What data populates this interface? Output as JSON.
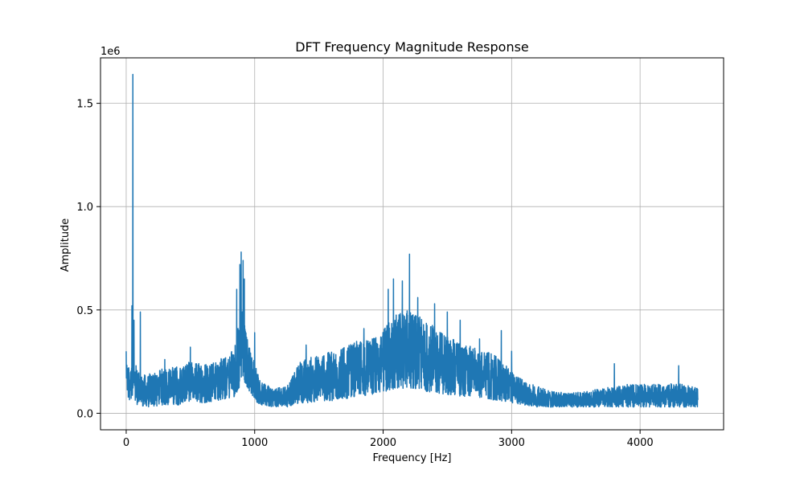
{
  "chart_data": {
    "type": "line",
    "title": "DFT Frequency Magnitude Response",
    "xlabel": "Frequency [Hz]",
    "ylabel": "Amplitude",
    "y_offset_label": "1e6",
    "xlim": [
      -200,
      4650
    ],
    "ylim": [
      -0.08,
      1.72
    ],
    "x_ticks": [
      {
        "value": 0,
        "label": "0"
      },
      {
        "value": 1000,
        "label": "1000"
      },
      {
        "value": 2000,
        "label": "2000"
      },
      {
        "value": 3000,
        "label": "3000"
      },
      {
        "value": 4000,
        "label": "4000"
      }
    ],
    "y_ticks": [
      {
        "value": 0.0,
        "label": "0.0"
      },
      {
        "value": 0.5,
        "label": "0.5"
      },
      {
        "value": 1.0,
        "label": "1.0"
      },
      {
        "value": 1.5,
        "label": "1.5"
      }
    ],
    "grid": true,
    "line_color": "#1f77b4",
    "series": [
      {
        "name": "magnitude",
        "envelope": {
          "x": [
            0,
            30,
            55,
            80,
            110,
            200,
            300,
            400,
            500,
            600,
            700,
            780,
            840,
            880,
            900,
            930,
            1000,
            1050,
            1150,
            1250,
            1350,
            1420,
            1500,
            1600,
            1700,
            1800,
            1900,
            1980,
            2050,
            2100,
            2150,
            2200,
            2250,
            2300,
            2400,
            2500,
            2600,
            2700,
            2800,
            2900,
            3000,
            3100,
            3200,
            3300,
            3400,
            3500,
            3600,
            3700,
            3800,
            3900,
            4000,
            4100,
            4200,
            4300,
            4400,
            4450
          ],
          "low": [
            0.1,
            0.05,
            0.1,
            0.04,
            0.03,
            0.03,
            0.04,
            0.04,
            0.05,
            0.05,
            0.06,
            0.07,
            0.08,
            0.12,
            0.16,
            0.14,
            0.06,
            0.04,
            0.03,
            0.03,
            0.05,
            0.05,
            0.06,
            0.06,
            0.07,
            0.08,
            0.09,
            0.1,
            0.11,
            0.12,
            0.12,
            0.12,
            0.12,
            0.11,
            0.1,
            0.09,
            0.08,
            0.08,
            0.07,
            0.06,
            0.05,
            0.04,
            0.03,
            0.03,
            0.03,
            0.03,
            0.03,
            0.03,
            0.03,
            0.03,
            0.03,
            0.03,
            0.03,
            0.03,
            0.03,
            0.03
          ],
          "high": [
            0.25,
            0.22,
            0.3,
            0.22,
            0.18,
            0.2,
            0.22,
            0.23,
            0.25,
            0.25,
            0.25,
            0.28,
            0.32,
            0.45,
            0.55,
            0.4,
            0.25,
            0.15,
            0.12,
            0.13,
            0.25,
            0.27,
            0.28,
            0.3,
            0.32,
            0.35,
            0.36,
            0.38,
            0.45,
            0.48,
            0.5,
            0.5,
            0.48,
            0.46,
            0.42,
            0.38,
            0.34,
            0.32,
            0.3,
            0.27,
            0.2,
            0.16,
            0.13,
            0.11,
            0.1,
            0.1,
            0.11,
            0.12,
            0.13,
            0.14,
            0.14,
            0.14,
            0.14,
            0.15,
            0.13,
            0.12
          ]
        },
        "peaks": [
          {
            "x": 0,
            "y": 0.3
          },
          {
            "x": 20,
            "y": 0.22
          },
          {
            "x": 45,
            "y": 0.52
          },
          {
            "x": 52,
            "y": 1.64
          },
          {
            "x": 60,
            "y": 0.45
          },
          {
            "x": 110,
            "y": 0.49
          },
          {
            "x": 300,
            "y": 0.26
          },
          {
            "x": 500,
            "y": 0.32
          },
          {
            "x": 860,
            "y": 0.6
          },
          {
            "x": 885,
            "y": 0.72
          },
          {
            "x": 895,
            "y": 0.78
          },
          {
            "x": 910,
            "y": 0.74
          },
          {
            "x": 920,
            "y": 0.65
          },
          {
            "x": 1000,
            "y": 0.39
          },
          {
            "x": 1400,
            "y": 0.33
          },
          {
            "x": 1850,
            "y": 0.41
          },
          {
            "x": 2040,
            "y": 0.6
          },
          {
            "x": 2080,
            "y": 0.65
          },
          {
            "x": 2150,
            "y": 0.64
          },
          {
            "x": 2205,
            "y": 0.77
          },
          {
            "x": 2270,
            "y": 0.56
          },
          {
            "x": 2400,
            "y": 0.53
          },
          {
            "x": 2500,
            "y": 0.49
          },
          {
            "x": 2600,
            "y": 0.45
          },
          {
            "x": 2750,
            "y": 0.36
          },
          {
            "x": 2920,
            "y": 0.4
          },
          {
            "x": 3000,
            "y": 0.3
          },
          {
            "x": 3800,
            "y": 0.24
          },
          {
            "x": 4300,
            "y": 0.23
          }
        ]
      }
    ]
  }
}
